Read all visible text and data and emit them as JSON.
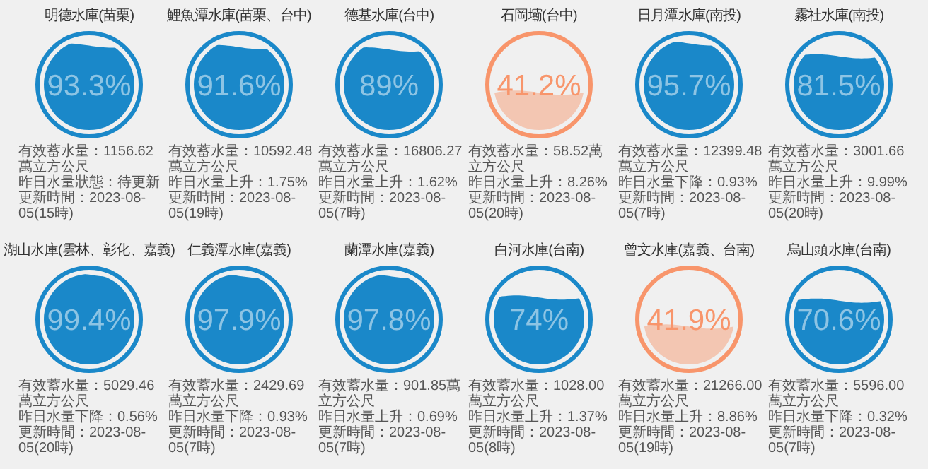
{
  "chart_data": [
    {
      "type": "other",
      "title": "明德水庫(苗栗)",
      "values": [
        93.3
      ],
      "value_labels": [
        "93.3%"
      ],
      "color": "#1a88c9",
      "colors": [
        "#1a88c9"
      ],
      "annotations": [
        "有效蓄水量：1156.62萬立方公尺",
        "昨日水量狀態：待更新",
        "更新時間：2023-08-05(15時)"
      ]
    },
    {
      "type": "other",
      "title": "鯉魚潭水庫(苗栗、台中)",
      "values": [
        91.6
      ],
      "value_labels": [
        "91.6%"
      ],
      "color": "#1a88c9",
      "colors": [
        "#1a88c9"
      ],
      "annotations": [
        "有效蓄水量：10592.48萬立方公尺",
        "昨日水量上升：1.75%",
        "更新時間：2023-08-05(19時)"
      ]
    },
    {
      "type": "other",
      "title": "德基水庫(台中)",
      "values": [
        89
      ],
      "value_labels": [
        "89%"
      ],
      "color": "#1a88c9",
      "colors": [
        "#1a88c9"
      ],
      "annotations": [
        "有效蓄水量：16806.27萬立方公尺",
        "昨日水量上升：1.62%",
        "更新時間：2023-08-05(7時)"
      ]
    },
    {
      "type": "other",
      "title": "石岡壩(台中)",
      "values": [
        41.2
      ],
      "value_labels": [
        "41.2%"
      ],
      "color": "#f8956b",
      "colors": [
        "#f3c6b2"
      ],
      "annotations": [
        "有效蓄水量：58.52萬立方公尺",
        "昨日水量上升：8.26%",
        "更新時間：2023-08-05(20時)"
      ]
    },
    {
      "type": "other",
      "title": "日月潭水庫(南投)",
      "values": [
        95.7
      ],
      "value_labels": [
        "95.7%"
      ],
      "color": "#1a88c9",
      "colors": [
        "#1a88c9"
      ],
      "annotations": [
        "有效蓄水量：12399.48萬立方公尺",
        "昨日水量下降：0.93%",
        "更新時間：2023-08-05(7時)"
      ]
    },
    {
      "type": "other",
      "title": "霧社水庫(南投)",
      "values": [
        81.5
      ],
      "value_labels": [
        "81.5%"
      ],
      "color": "#1a88c9",
      "colors": [
        "#1a88c9"
      ],
      "annotations": [
        "有效蓄水量：3001.66萬立方公尺",
        "昨日水量上升：9.99%",
        "更新時間：2023-08-05(20時)"
      ]
    },
    {
      "type": "other",
      "title": "湖山水庫(雲林、彰化、嘉義)",
      "values": [
        99.4
      ],
      "value_labels": [
        "99.4%"
      ],
      "color": "#1a88c9",
      "colors": [
        "#1a88c9"
      ],
      "annotations": [
        "有效蓄水量：5029.46萬立方公尺",
        "昨日水量下降：0.56%",
        "更新時間：2023-08-05(20時)"
      ]
    },
    {
      "type": "other",
      "title": "仁義潭水庫(嘉義)",
      "values": [
        97.9
      ],
      "value_labels": [
        "97.9%"
      ],
      "color": "#1a88c9",
      "colors": [
        "#1a88c9"
      ],
      "annotations": [
        "有效蓄水量：2429.69萬立方公尺",
        "昨日水量下降：0.93%",
        "更新時間：2023-08-05(7時)"
      ]
    },
    {
      "type": "other",
      "title": "蘭潭水庫(嘉義)",
      "values": [
        97.8
      ],
      "value_labels": [
        "97.8%"
      ],
      "color": "#1a88c9",
      "colors": [
        "#1a88c9"
      ],
      "annotations": [
        "有效蓄水量：901.85萬立方公尺",
        "昨日水量上升：0.69%",
        "更新時間：2023-08-05(7時)"
      ]
    },
    {
      "type": "other",
      "title": "白河水庫(台南)",
      "values": [
        74
      ],
      "value_labels": [
        "74%"
      ],
      "color": "#1a88c9",
      "colors": [
        "#1a88c9"
      ],
      "annotations": [
        "有效蓄水量：1028.00萬立方公尺",
        "昨日水量上升：1.37%",
        "更新時間：2023-08-05(8時)"
      ]
    },
    {
      "type": "other",
      "title": "曾文水庫(嘉義、台南)",
      "values": [
        41.9
      ],
      "value_labels": [
        "41.9%"
      ],
      "color": "#f8956b",
      "colors": [
        "#f3c6b2"
      ],
      "annotations": [
        "有效蓄水量：21266.00萬立方公尺",
        "昨日水量上升：8.86%",
        "更新時間：2023-08-05(19時)"
      ]
    },
    {
      "type": "other",
      "title": "烏山頭水庫(台南)",
      "values": [
        70.6
      ],
      "value_labels": [
        "70.6%"
      ],
      "color": "#1a88c9",
      "colors": [
        "#1a88c9"
      ],
      "annotations": [
        "有效蓄水量：5596.00萬立方公尺",
        "昨日水量下降：0.32%",
        "更新時間：2023-08-05(7時)"
      ]
    }
  ]
}
